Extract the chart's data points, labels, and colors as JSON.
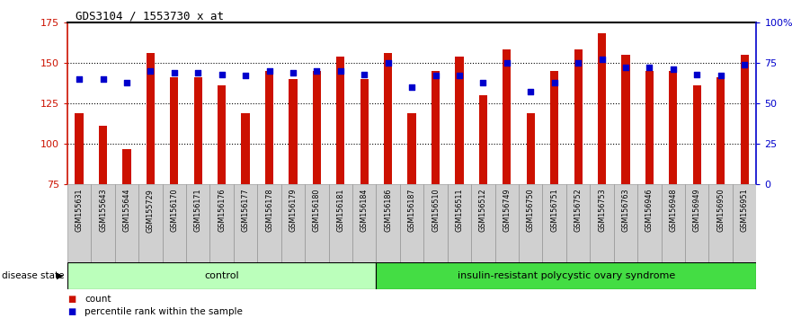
{
  "title": "GDS3104 / 1553730_x_at",
  "samples": [
    "GSM155631",
    "GSM155643",
    "GSM155644",
    "GSM155729",
    "GSM156170",
    "GSM156171",
    "GSM156176",
    "GSM156177",
    "GSM156178",
    "GSM156179",
    "GSM156180",
    "GSM156181",
    "GSM156184",
    "GSM156186",
    "GSM156187",
    "GSM156510",
    "GSM156511",
    "GSM156512",
    "GSM156749",
    "GSM156750",
    "GSM156751",
    "GSM156752",
    "GSM156753",
    "GSM156763",
    "GSM156946",
    "GSM156948",
    "GSM156949",
    "GSM156950",
    "GSM156951"
  ],
  "counts": [
    119,
    111,
    97,
    156,
    141,
    141,
    136,
    119,
    145,
    140,
    145,
    154,
    140,
    156,
    119,
    145,
    154,
    130,
    158,
    119,
    145,
    158,
    168,
    155,
    145,
    145,
    136,
    141,
    155
  ],
  "percentiles": [
    65,
    65,
    63,
    70,
    69,
    69,
    68,
    67,
    70,
    69,
    70,
    70,
    68,
    75,
    60,
    67,
    67,
    63,
    75,
    57,
    63,
    75,
    77,
    72,
    72,
    71,
    68,
    67,
    74
  ],
  "group_labels": [
    "control",
    "insulin-resistant polycystic ovary syndrome"
  ],
  "group_counts": [
    13,
    16
  ],
  "bar_color": "#CC1100",
  "dot_color": "#0000CC",
  "ymin": 75,
  "ymax": 175,
  "yticks_left": [
    75,
    100,
    125,
    150,
    175
  ],
  "yticks_right": [
    0,
    25,
    50,
    75,
    100
  ],
  "ytick_right_labels": [
    "0",
    "25",
    "50",
    "75",
    "100%"
  ],
  "grid_lines": [
    100,
    125,
    150
  ],
  "control_color": "#bbffbb",
  "disease_color": "#44dd44",
  "bg_gray": "#d0d0d0",
  "legend_count_label": "count",
  "legend_pct_label": "percentile rank within the sample"
}
